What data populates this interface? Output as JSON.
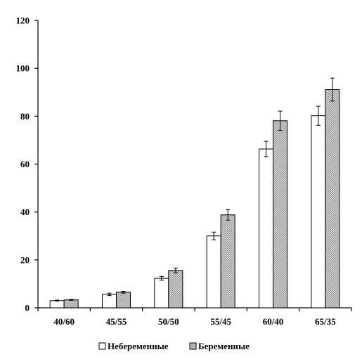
{
  "chart_data": {
    "type": "bar",
    "categories": [
      "40/60",
      "45/55",
      "50/50",
      "55/45",
      "60/40",
      "65/35"
    ],
    "series": [
      {
        "name": "Небеременные",
        "values": [
          3.0,
          5.6,
          12.3,
          30.0,
          66.3,
          80.2
        ],
        "errors": [
          0.2,
          0.5,
          0.8,
          1.6,
          3.2,
          4.0
        ],
        "color": "#ffffff"
      },
      {
        "name": "Беременные",
        "values": [
          3.3,
          6.5,
          15.6,
          38.8,
          78.1,
          91.1
        ],
        "errors": [
          0.2,
          0.4,
          1.0,
          2.2,
          4.0,
          4.8
        ],
        "color": "#cfcfcf"
      }
    ],
    "ylim": [
      0,
      120
    ],
    "yticks": [
      "0",
      "20",
      "40",
      "60",
      "80",
      "100",
      "120"
    ],
    "grid": false,
    "legend": "bottom"
  }
}
